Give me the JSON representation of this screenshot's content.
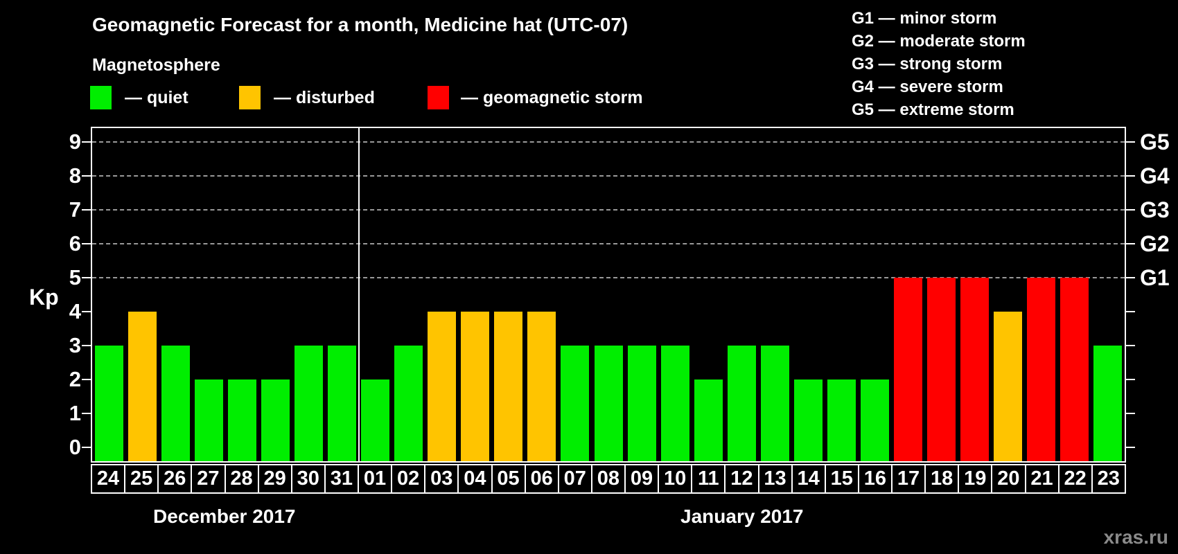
{
  "header": {
    "title": "Geomagnetic Forecast for a month, Medicine hat (UTC-07)",
    "subtitle": "Magnetosphere"
  },
  "legend": {
    "items": [
      {
        "name": "quiet",
        "label": "— quiet",
        "color": "#00ee00"
      },
      {
        "name": "disturbed",
        "label": "— disturbed",
        "color": "#ffc400"
      },
      {
        "name": "storm",
        "label": "— geomagnetic storm",
        "color": "#ff0000"
      }
    ]
  },
  "g_legend": {
    "items": [
      "G1 — minor storm",
      "G2 — moderate storm",
      "G3 — strong storm",
      "G4 — severe storm",
      "G5 — extreme storm"
    ]
  },
  "chart_data": {
    "type": "bar",
    "title": "Geomagnetic Forecast for a month, Medicine hat (UTC-07)",
    "ylabel": "Kp",
    "ylim": [
      -0.4,
      9.4
    ],
    "yticks": [
      0,
      1,
      2,
      3,
      4,
      5,
      6,
      7,
      8,
      9
    ],
    "gridlines_at": [
      5,
      6,
      7,
      8,
      9
    ],
    "grid": "dashed",
    "legend_position": "top",
    "right_axis": [
      {
        "level": 5,
        "label": "G1"
      },
      {
        "level": 6,
        "label": "G2"
      },
      {
        "level": 7,
        "label": "G3"
      },
      {
        "level": 8,
        "label": "G4"
      },
      {
        "level": 9,
        "label": "G5"
      }
    ],
    "status_colors": {
      "quiet": "#00ee00",
      "disturbed": "#ffc400",
      "storm": "#ff0000"
    },
    "bars": [
      {
        "day": "24",
        "kp": 3,
        "status": "quiet"
      },
      {
        "day": "25",
        "kp": 4,
        "status": "disturbed"
      },
      {
        "day": "26",
        "kp": 3,
        "status": "quiet"
      },
      {
        "day": "27",
        "kp": 2,
        "status": "quiet"
      },
      {
        "day": "28",
        "kp": 2,
        "status": "quiet"
      },
      {
        "day": "29",
        "kp": 2,
        "status": "quiet"
      },
      {
        "day": "30",
        "kp": 3,
        "status": "quiet"
      },
      {
        "day": "31",
        "kp": 3,
        "status": "quiet"
      },
      {
        "day": "01",
        "kp": 2,
        "status": "quiet"
      },
      {
        "day": "02",
        "kp": 3,
        "status": "quiet"
      },
      {
        "day": "03",
        "kp": 4,
        "status": "disturbed"
      },
      {
        "day": "04",
        "kp": 4,
        "status": "disturbed"
      },
      {
        "day": "05",
        "kp": 4,
        "status": "disturbed"
      },
      {
        "day": "06",
        "kp": 4,
        "status": "disturbed"
      },
      {
        "day": "07",
        "kp": 3,
        "status": "quiet"
      },
      {
        "day": "08",
        "kp": 3,
        "status": "quiet"
      },
      {
        "day": "09",
        "kp": 3,
        "status": "quiet"
      },
      {
        "day": "10",
        "kp": 3,
        "status": "quiet"
      },
      {
        "day": "11",
        "kp": 2,
        "status": "quiet"
      },
      {
        "day": "12",
        "kp": 3,
        "status": "quiet"
      },
      {
        "day": "13",
        "kp": 3,
        "status": "quiet"
      },
      {
        "day": "14",
        "kp": 2,
        "status": "quiet"
      },
      {
        "day": "15",
        "kp": 2,
        "status": "quiet"
      },
      {
        "day": "16",
        "kp": 2,
        "status": "quiet"
      },
      {
        "day": "17",
        "kp": 5,
        "status": "storm"
      },
      {
        "day": "18",
        "kp": 5,
        "status": "storm"
      },
      {
        "day": "19",
        "kp": 5,
        "status": "storm"
      },
      {
        "day": "20",
        "kp": 4,
        "status": "disturbed"
      },
      {
        "day": "21",
        "kp": 5,
        "status": "storm"
      },
      {
        "day": "22",
        "kp": 5,
        "status": "storm"
      },
      {
        "day": "23",
        "kp": 3,
        "status": "quiet"
      }
    ],
    "separator_after_index": 7,
    "month_groups": [
      {
        "label": "December 2017",
        "span": 8
      },
      {
        "label": "January 2017",
        "span": 23
      }
    ]
  },
  "watermark": "xras.ru"
}
